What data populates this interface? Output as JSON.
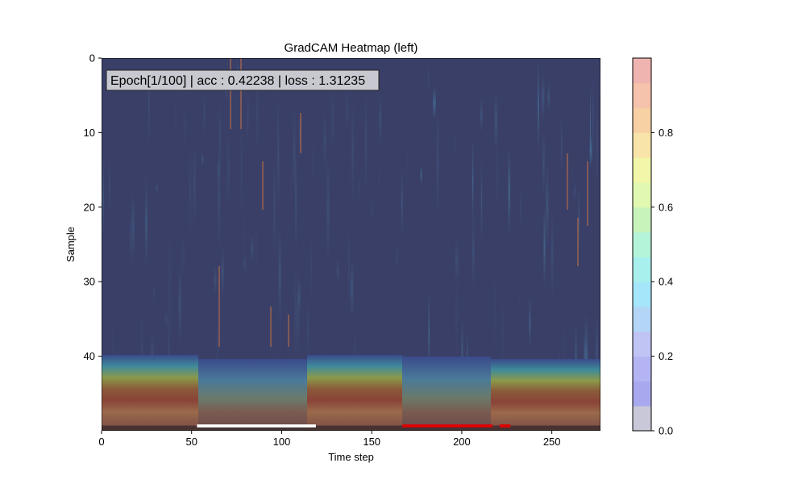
{
  "chart_data": {
    "type": "heatmap",
    "title": "GradCAM Heatmap (left)",
    "xlabel": "Time step",
    "ylabel": "Sample",
    "xlim": [
      0,
      277
    ],
    "ylim": [
      50,
      0
    ],
    "x_ticks": [
      0,
      50,
      100,
      150,
      200,
      250
    ],
    "y_ticks": [
      0,
      10,
      20,
      30,
      40
    ],
    "colorbar": {
      "min": 0.0,
      "max": 1.0,
      "ticks": [
        0.0,
        0.2,
        0.4,
        0.6,
        0.8
      ],
      "tick_labels": [
        "0.0",
        "0.2",
        "0.4",
        "0.6",
        "0.8"
      ],
      "colors": [
        "#c8c8d8",
        "#a8a8ee",
        "#b4b4f2",
        "#bfc4f4",
        "#b3d6f6",
        "#a5e6fa",
        "#a8f0ee",
        "#b4f4d8",
        "#c8f4bc",
        "#e0f8b0",
        "#f2f6a8",
        "#f8e4a8",
        "#f7d0a4",
        "#f5c2ac",
        "#f0b4b0"
      ]
    },
    "bands": [
      {
        "y_start": 40,
        "y_end": 50,
        "description": "high activation band"
      }
    ],
    "label_segments": [
      {
        "x_start": 53,
        "x_end": 119,
        "color": "#ffffff"
      },
      {
        "x_start": 167,
        "x_end": 217,
        "color": "#e00000"
      },
      {
        "x_start": 221,
        "x_end": 227,
        "color": "#e00000"
      }
    ],
    "grid": false,
    "annotation": "Epoch[1/100] | acc : 0.42238 | loss : 1.31235"
  }
}
